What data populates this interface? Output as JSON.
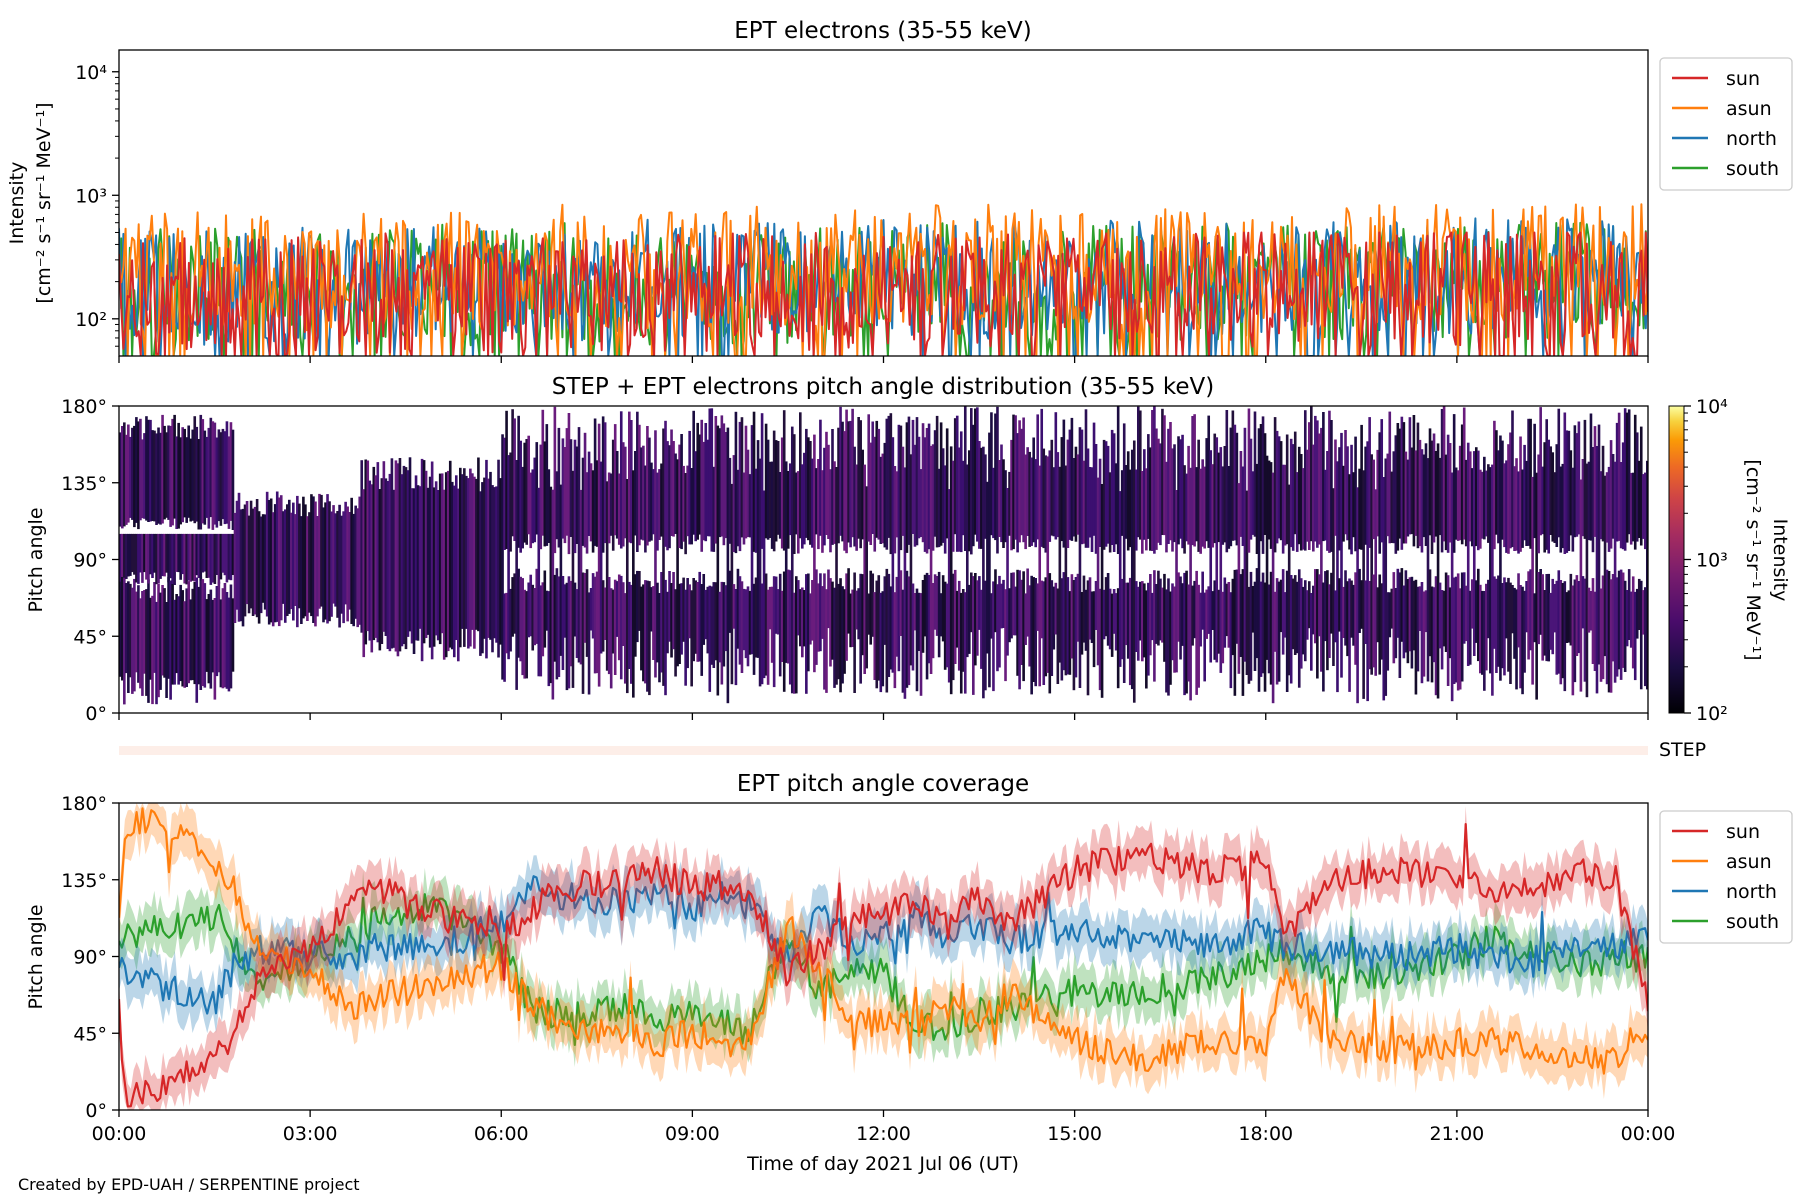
{
  "figure": {
    "footer": "Created by EPD-UAH / SERPENTINE project",
    "step_label": "STEP"
  },
  "colors": {
    "sun": "#d62728",
    "asun": "#ff7f0e",
    "north": "#1f77b4",
    "south": "#2ca02c"
  },
  "chart_data": [
    {
      "type": "line",
      "title": "EPT electrons (35-55 keV)",
      "ylabel_line1": "Intensity",
      "ylabel_line2": "[cm⁻² s⁻¹ sr⁻¹ MeV⁻¹]",
      "yscale": "log",
      "ylim": [
        50,
        15000
      ],
      "yticks": [
        100,
        1000,
        10000
      ],
      "ytick_labels": [
        "10²",
        "10³",
        "10⁴"
      ],
      "xlim_hours": [
        0,
        24
      ],
      "grid": false,
      "legend_position": "outside-right-top",
      "series": [
        {
          "name": "sun",
          "color": "#d62728",
          "typical": 150,
          "range": [
            50,
            500
          ]
        },
        {
          "name": "asun",
          "color": "#ff7f0e",
          "typical": 230,
          "range": [
            50,
            850
          ]
        },
        {
          "name": "north",
          "color": "#1f77b4",
          "typical": 180,
          "range": [
            50,
            650
          ]
        },
        {
          "name": "south",
          "color": "#2ca02c",
          "typical": 170,
          "range": [
            50,
            600
          ]
        }
      ]
    },
    {
      "type": "heatmap",
      "title": "STEP + EPT electrons pitch angle distribution (35-55 keV)",
      "ylabel": "Pitch angle",
      "ylim": [
        0,
        180
      ],
      "yticks": [
        0,
        45,
        90,
        135,
        180
      ],
      "ytick_labels": [
        "0°",
        "45°",
        "90°",
        "135°",
        "180°"
      ],
      "xlim_hours": [
        0,
        24
      ],
      "colorbar": {
        "label_line1": "Intensity",
        "label_line2": "[cm⁻² s⁻¹ sr⁻¹ MeV⁻¹]",
        "scale": "log",
        "range": [
          100,
          10000
        ],
        "ticks": [
          100,
          1000,
          10000
        ],
        "tick_labels": [
          "10²",
          "10³",
          "10⁴"
        ],
        "colormap": "inferno"
      }
    },
    {
      "type": "line",
      "title": "EPT pitch angle coverage",
      "ylabel": "Pitch angle",
      "xlabel": "Time of day 2021 Jul 06 (UT)",
      "ylim": [
        0,
        180
      ],
      "yticks": [
        0,
        45,
        90,
        135,
        180
      ],
      "ytick_labels": [
        "0°",
        "45°",
        "90°",
        "135°",
        "180°"
      ],
      "xlim_hours": [
        0,
        24
      ],
      "xticks_hours": [
        0,
        3,
        6,
        9,
        12,
        15,
        18,
        21,
        24
      ],
      "xtick_labels": [
        "00:00",
        "03:00",
        "06:00",
        "09:00",
        "12:00",
        "15:00",
        "18:00",
        "21:00",
        "00:00"
      ],
      "legend_position": "outside-right-top",
      "series": [
        {
          "name": "sun",
          "color": "#d62728",
          "hours": [
            0,
            0.1,
            0.5,
            1,
            1.5,
            1.8,
            2.2,
            3,
            3.7,
            4,
            5,
            6,
            6.5,
            7,
            8,
            8.5,
            9,
            9.5,
            9.9,
            10.5,
            11,
            11.5,
            12,
            12.5,
            13,
            13.5,
            14,
            15,
            15.5,
            16,
            17,
            18,
            18.3,
            19,
            20,
            21,
            21.5,
            22,
            23,
            23.5,
            24
          ],
          "values": [
            60,
            10,
            12,
            20,
            30,
            40,
            80,
            95,
            125,
            130,
            115,
            100,
            120,
            130,
            135,
            140,
            130,
            132,
            130,
            80,
            95,
            110,
            115,
            120,
            110,
            125,
            110,
            140,
            145,
            150,
            140,
            145,
            100,
            135,
            140,
            135,
            130,
            130,
            140,
            135,
            60
          ]
        },
        {
          "name": "asun",
          "color": "#ff7f0e",
          "hours": [
            0,
            0.1,
            0.5,
            1,
            1.5,
            1.8,
            2.2,
            3,
            3.7,
            4,
            5,
            6,
            6.5,
            7,
            8,
            8.5,
            9,
            9.5,
            9.9,
            10.5,
            11,
            11.5,
            12,
            12.5,
            13,
            13.5,
            14,
            15,
            15.5,
            16,
            17,
            18,
            18.3,
            19,
            20,
            21,
            21.5,
            22,
            23,
            23.5,
            24
          ],
          "values": [
            120,
            170,
            168,
            160,
            145,
            130,
            95,
            85,
            60,
            65,
            75,
            85,
            60,
            50,
            45,
            40,
            45,
            40,
            40,
            110,
            80,
            55,
            50,
            50,
            60,
            50,
            70,
            40,
            35,
            30,
            40,
            38,
            80,
            40,
            35,
            40,
            40,
            40,
            30,
            30,
            50
          ]
        },
        {
          "name": "north",
          "color": "#1f77b4",
          "hours": [
            0,
            0.1,
            0.5,
            1,
            1.5,
            1.8,
            2.2,
            3,
            3.7,
            4,
            5,
            6,
            6.5,
            7,
            8,
            8.5,
            9,
            9.5,
            9.9,
            10.5,
            11,
            11.5,
            12,
            12.5,
            13,
            13.5,
            14,
            15,
            15.5,
            16,
            17,
            18,
            18.3,
            19,
            20,
            21,
            21.5,
            22,
            23,
            23.5,
            24
          ],
          "values": [
            85,
            80,
            75,
            70,
            60,
            85,
            95,
            90,
            90,
            95,
            95,
            110,
            130,
            125,
            120,
            125,
            120,
            125,
            120,
            90,
            115,
            100,
            100,
            115,
            100,
            110,
            100,
            105,
            100,
            100,
            95,
            105,
            95,
            95,
            90,
            95,
            90,
            85,
            95,
            95,
            100
          ]
        },
        {
          "name": "south",
          "color": "#2ca02c",
          "hours": [
            0,
            0.1,
            0.5,
            1,
            1.5,
            1.8,
            2.2,
            3,
            3.7,
            4,
            5,
            6,
            6.5,
            7,
            8,
            8.5,
            9,
            9.5,
            9.9,
            10.5,
            11,
            11.5,
            12,
            12.5,
            13,
            13.5,
            14,
            15,
            15.5,
            16,
            17,
            18,
            18.3,
            19,
            20,
            21,
            21.5,
            22,
            23,
            23.5,
            24
          ],
          "values": [
            95,
            100,
            105,
            110,
            115,
            100,
            75,
            90,
            100,
            110,
            120,
            95,
            60,
            55,
            60,
            55,
            55,
            50,
            45,
            100,
            70,
            80,
            80,
            50,
            45,
            55,
            60,
            70,
            65,
            70,
            75,
            90,
            95,
            80,
            80,
            90,
            100,
            95,
            85,
            90,
            90
          ]
        }
      ]
    }
  ]
}
